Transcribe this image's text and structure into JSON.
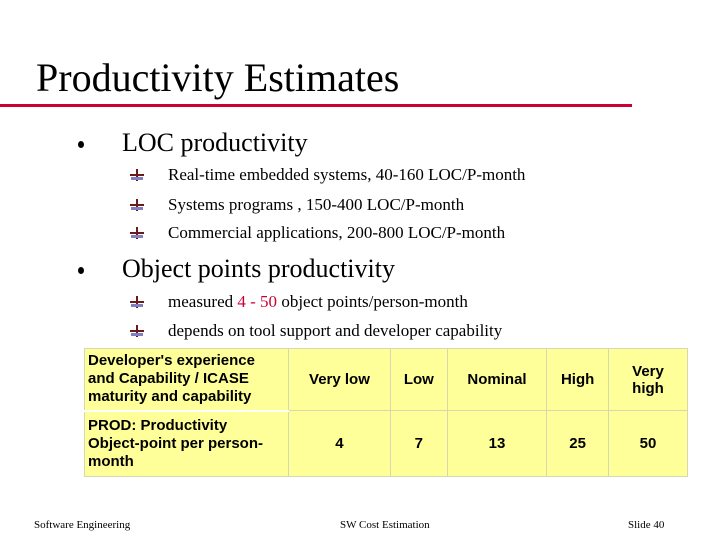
{
  "slide": {
    "title": "Productivity Estimates",
    "sections": [
      {
        "heading": "LOC productivity",
        "items": [
          "Real-time embedded systems, 40-160 LOC/P-month",
          "Systems programs , 150-400 LOC/P-month",
          "Commercial applications, 200-800 LOC/P-month"
        ]
      },
      {
        "heading": "Object points productivity",
        "item1_pre": "measured ",
        "item1_highlight": "4 - 50",
        "item1_post": " object points/person-month",
        "item2": "depends on tool support and developer capability"
      }
    ],
    "table": {
      "row1_label_lines": [
        "Developer's experience",
        "and Capability / ICASE",
        "maturity and capability"
      ],
      "levels": [
        "Very low",
        "Low",
        "Nominal",
        "High",
        "Very high"
      ],
      "row2_label_lines": [
        "PROD: Productivity",
        "Object-point per person-",
        "month"
      ],
      "prod_values": [
        "4",
        "7",
        "13",
        "25",
        "50"
      ]
    },
    "footer": {
      "left": "Software Engineering",
      "center": "SW Cost Estimation",
      "right": "Slide 40"
    },
    "colors": {
      "title_rule": "#cc0033",
      "highlight": "#cc0033",
      "table_fill": "#ffff99",
      "sub_bullet_top": "#6b1a1a",
      "sub_bullet_bottom": "#8080c0"
    }
  }
}
